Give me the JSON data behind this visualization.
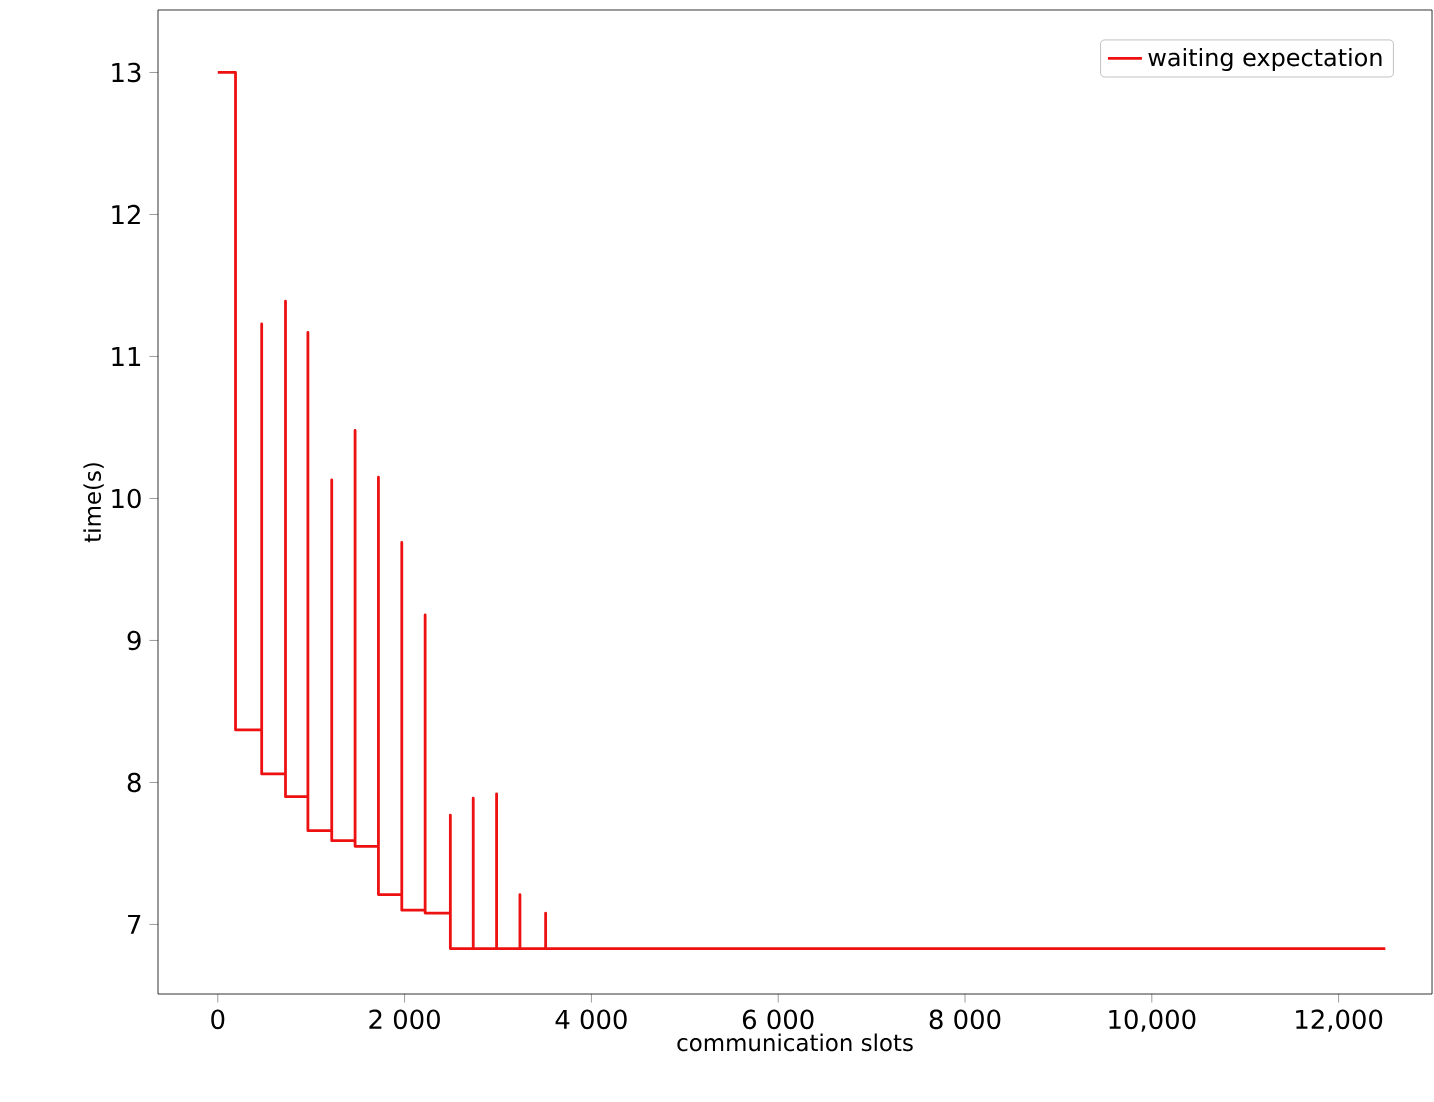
{
  "chart_data": {
    "type": "line",
    "xlabel": "communication slots",
    "ylabel": "time(s)",
    "legend": "top right",
    "grid": false,
    "marker": "none",
    "line_style": "solid",
    "xlim": [
      -640,
      13000
    ],
    "ylim": [
      6.51,
      13.44
    ],
    "xticks": [
      0,
      {
        "value": 2000,
        "label": "2 000"
      },
      {
        "value": 4000,
        "label": "4 000"
      },
      {
        "value": 6000,
        "label": "6 000"
      },
      {
        "value": 8000,
        "label": "8 000"
      },
      {
        "value": 10000,
        "label": "10,000"
      },
      {
        "value": 12000,
        "label": "12,000"
      }
    ],
    "yticks": [
      7,
      8,
      9,
      10,
      11,
      12,
      13
    ],
    "series": [
      {
        "name": "waiting expectation",
        "color": "#ee1111",
        "x": [
          0,
          190,
          190,
          470,
          470,
          470,
          725,
          725,
          725,
          965,
          965,
          965,
          1220,
          1220,
          1220,
          1470,
          1470,
          1470,
          1720,
          1720,
          1720,
          1970,
          1970,
          1970,
          2220,
          2220,
          2220,
          2490,
          2490,
          2490,
          2735,
          2735,
          2735,
          2985,
          2985,
          2985,
          3235,
          3235,
          3235,
          3510,
          3510,
          3510,
          12500
        ],
        "values": [
          13,
          13,
          8.37,
          8.37,
          11.23,
          8.06,
          8.06,
          11.39,
          7.9,
          7.9,
          11.17,
          7.66,
          7.66,
          10.13,
          7.59,
          7.59,
          10.48,
          7.55,
          7.55,
          10.15,
          7.21,
          7.21,
          9.69,
          7.1,
          7.1,
          9.18,
          7.08,
          7.08,
          7.77,
          6.83,
          6.83,
          7.89,
          6.83,
          6.83,
          7.92,
          6.83,
          6.83,
          7.21,
          6.83,
          6.83,
          7.08,
          6.83,
          6.83
        ]
      }
    ]
  }
}
